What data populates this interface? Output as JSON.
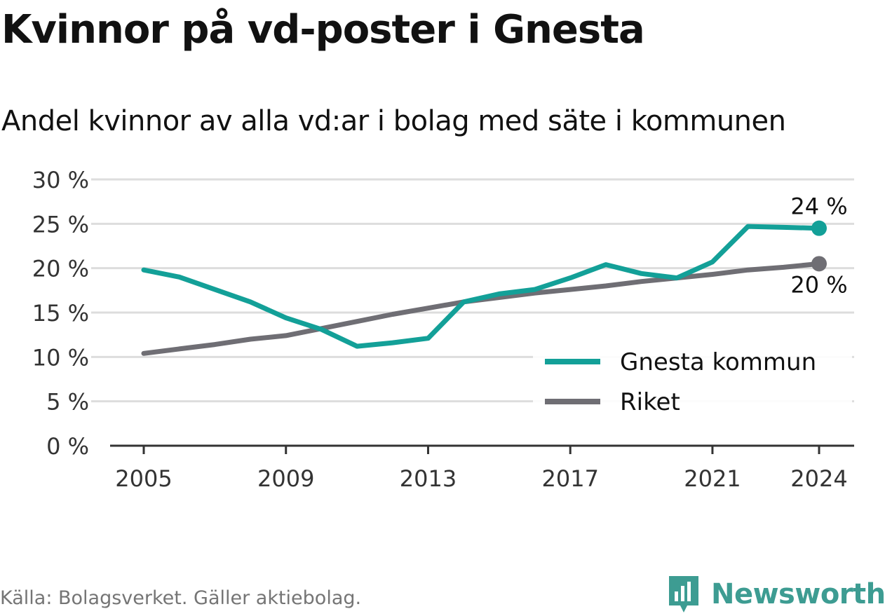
{
  "title": "Kvinnor på vd-poster i Gnesta",
  "subtitle": "Andel kvinnor av alla vd:ar i bolag med säte i kommunen",
  "source": "Källa: Bolagsverket. Gäller aktiebolag.",
  "brand": "Newsworthy",
  "colors": {
    "gnesta": "#13a098",
    "riket": "#6f6e74",
    "grid": "#dddddd",
    "axis": "#333333"
  },
  "chart_data": {
    "type": "line",
    "x": [
      2005,
      2006,
      2007,
      2008,
      2009,
      2010,
      2011,
      2012,
      2013,
      2014,
      2015,
      2016,
      2017,
      2018,
      2019,
      2020,
      2021,
      2022,
      2023,
      2024
    ],
    "series": [
      {
        "name": "Gnesta kommun",
        "color": "#13a098",
        "values": [
          19.8,
          19.0,
          17.6,
          16.2,
          14.4,
          13.1,
          11.2,
          11.6,
          12.1,
          16.2,
          17.1,
          17.6,
          18.9,
          20.4,
          19.4,
          18.9,
          20.7,
          24.7,
          24.6,
          24.5
        ]
      },
      {
        "name": "Riket",
        "color": "#6f6e74",
        "values": [
          10.4,
          10.9,
          11.4,
          12.0,
          12.4,
          13.2,
          14.0,
          14.8,
          15.5,
          16.2,
          16.7,
          17.2,
          17.6,
          18.0,
          18.5,
          18.9,
          19.3,
          19.8,
          20.1,
          20.5
        ]
      }
    ],
    "end_labels": [
      "24 %",
      "20 %"
    ],
    "x_ticks": [
      "2005",
      "2009",
      "2013",
      "2017",
      "2021",
      "2024"
    ],
    "y_ticks": [
      "0 %",
      "5 %",
      "10 %",
      "15 %",
      "20 %",
      "25 %",
      "30 %"
    ],
    "ylim": [
      0,
      30
    ],
    "grid": true,
    "legend_position": "lower-right"
  }
}
